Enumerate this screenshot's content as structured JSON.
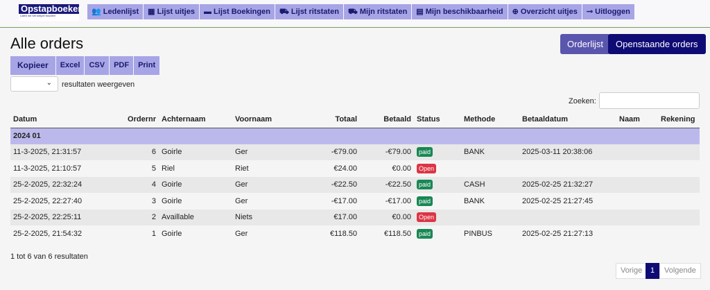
{
  "logo": {
    "title": "Opstapboeker",
    "slogan": "Laten we het simpel houden!"
  },
  "nav": [
    {
      "icon": "users-icon",
      "g": "👥",
      "label": "Ledenlijst"
    },
    {
      "icon": "calendar-icon",
      "g": "▦",
      "label": "Lijst uitjes"
    },
    {
      "icon": "ticket-icon",
      "g": "▬",
      "label": "Lijst Boekingen"
    },
    {
      "icon": "car-icon",
      "g": "⛟",
      "label": "Lijst ritstaten"
    },
    {
      "icon": "car-icon",
      "g": "⛟",
      "label": "Mijn ritstaten"
    },
    {
      "icon": "list-icon",
      "g": "▤",
      "label": "Mijn beschikbaarheid"
    },
    {
      "icon": "globe-icon",
      "g": "⊕",
      "label": "Overzicht uitjes"
    },
    {
      "icon": "key-icon",
      "g": "⊸",
      "label": "Uitloggen"
    }
  ],
  "title": "Alle orders",
  "buttons": {
    "orderlijst": "Orderlijst",
    "open": "Openstaande orders"
  },
  "export": [
    "Kopieer",
    "Excel",
    "CSV",
    "PDF",
    "Print"
  ],
  "length_label": "resultaten weergeven",
  "search_label": "Zoeken:",
  "columns": [
    "Datum",
    "Ordernr",
    "Achternaam",
    "Voornaam",
    "Totaal",
    "Betaald",
    "Status",
    "Methode",
    "Betaaldatum",
    "Naam",
    "Rekening"
  ],
  "group": "2024 01",
  "rows": [
    [
      "11-3-2025, 21:31:57",
      "6",
      "Goirle",
      "Ger",
      "-€79.00",
      "-€79.00",
      "paid",
      "BANK",
      "2025-03-11 20:38:06",
      "",
      ""
    ],
    [
      "11-3-2025, 21:10:57",
      "5",
      "Riel",
      "Riet",
      "€24.00",
      "€0.00",
      "Open",
      "",
      "",
      "",
      ""
    ],
    [
      "25-2-2025, 22:32:24",
      "4",
      "Goirle",
      "Ger",
      "-€22.50",
      "-€22.50",
      "paid",
      "CASH",
      "2025-02-25 21:32:27",
      "",
      ""
    ],
    [
      "25-2-2025, 22:27:40",
      "3",
      "Goirle",
      "Ger",
      "-€17.00",
      "-€17.00",
      "paid",
      "BANK",
      "2025-02-25 21:27:45",
      "",
      ""
    ],
    [
      "25-2-2025, 22:25:11",
      "2",
      "Availlable",
      "Niets",
      "€17.00",
      "€0.00",
      "Open",
      "",
      "",
      "",
      ""
    ],
    [
      "25-2-2025, 21:54:32",
      "1",
      "Goirle",
      "Ger",
      "€118.50",
      "€118.50",
      "paid",
      "PINBUS",
      "2025-02-25 21:27:13",
      "",
      ""
    ]
  ],
  "status_colors": {
    "paid": "#198754",
    "Open": "#dc3545"
  },
  "info": "1 tot 6 van 6 resultaten",
  "pager": {
    "prev": "Vorige",
    "page": "1",
    "next": "Volgende"
  }
}
